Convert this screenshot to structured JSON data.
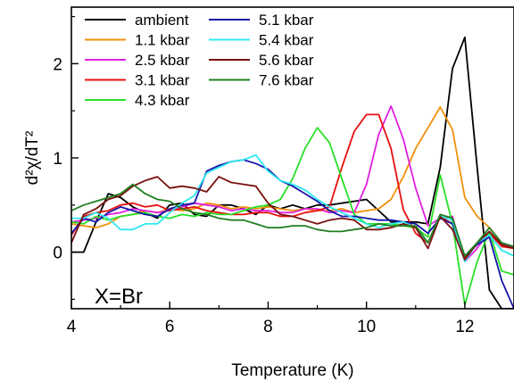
{
  "chart_data": {
    "type": "line",
    "xlabel": "Temperature (K)",
    "ylabel": "d²χ/dT²",
    "xlim": [
      4,
      13
    ],
    "ylim": [
      -0.6,
      2.6
    ],
    "x_ticks": [
      4,
      6,
      8,
      10,
      12
    ],
    "y_ticks": [
      0,
      1,
      2
    ],
    "grid": false,
    "legend_placement": "top-left",
    "annotation": "X=Br",
    "series": [
      {
        "name": "ambient",
        "color": "#000000",
        "x": [
          4,
          4.25,
          4.5,
          4.75,
          5,
          5.25,
          5.5,
          5.75,
          6,
          6.25,
          6.5,
          6.75,
          7,
          7.25,
          7.5,
          7.75,
          8,
          8.25,
          8.5,
          8.75,
          9,
          9.25,
          9.5,
          9.75,
          10,
          10.25,
          10.5,
          10.75,
          11,
          11.25,
          11.5,
          11.75,
          12,
          12.25,
          12.5,
          12.75,
          13
        ],
        "y": [
          0,
          0,
          0.32,
          0.62,
          0.58,
          0.48,
          0.42,
          0.36,
          0.5,
          0.52,
          0.4,
          0.38,
          0.5,
          0.5,
          0.46,
          0.4,
          0.5,
          0.46,
          0.5,
          0.46,
          0.5,
          0.5,
          0.52,
          0.54,
          0.56,
          0.44,
          0.32,
          0.32,
          0.32,
          0.3,
          0.9,
          1.95,
          2.28,
          0.9,
          -0.4,
          -0.6,
          -0.6
        ]
      },
      {
        "name": "1.1 kbar",
        "color": "#f0900a",
        "x": [
          4,
          4.25,
          4.5,
          4.75,
          5,
          5.25,
          5.5,
          5.75,
          6,
          6.25,
          6.5,
          6.75,
          7,
          7.25,
          7.5,
          7.75,
          8,
          8.25,
          8.5,
          8.75,
          9,
          9.25,
          9.5,
          9.75,
          10,
          10.25,
          10.5,
          10.75,
          11,
          11.25,
          11.5,
          11.75,
          12,
          12.25,
          12.5,
          12.75,
          13
        ],
        "y": [
          0.3,
          0.28,
          0.26,
          0.3,
          0.38,
          0.4,
          0.44,
          0.42,
          0.46,
          0.44,
          0.46,
          0.52,
          0.5,
          0.46,
          0.48,
          0.46,
          0.48,
          0.46,
          0.44,
          0.46,
          0.44,
          0.44,
          0.46,
          0.42,
          0.44,
          0.46,
          0.56,
          0.8,
          1.1,
          1.32,
          1.54,
          1.3,
          0.58,
          0.38,
          0.26,
          0.1,
          0.05
        ]
      },
      {
        "name": "2.5 kbar",
        "color": "#e020e0",
        "x": [
          4,
          4.25,
          4.5,
          4.75,
          5,
          5.25,
          5.5,
          5.75,
          6,
          6.25,
          6.5,
          6.75,
          7,
          7.25,
          7.5,
          7.75,
          8,
          8.25,
          8.5,
          8.75,
          9,
          9.25,
          9.5,
          9.75,
          10,
          10.25,
          10.5,
          10.75,
          11,
          11.25,
          11.5,
          11.75,
          12,
          12.25,
          12.5,
          12.75,
          13
        ],
        "y": [
          0.32,
          0.34,
          0.36,
          0.4,
          0.42,
          0.46,
          0.44,
          0.42,
          0.44,
          0.48,
          0.52,
          0.5,
          0.48,
          0.44,
          0.46,
          0.44,
          0.44,
          0.42,
          0.42,
          0.46,
          0.46,
          0.42,
          0.44,
          0.42,
          0.72,
          1.25,
          1.55,
          1.2,
          0.68,
          0.28,
          0.36,
          0.38,
          -0.1,
          0.04,
          0.22,
          0.08,
          0.06
        ]
      },
      {
        "name": "3.1 kbar",
        "color": "#e81010",
        "x": [
          4,
          4.25,
          4.5,
          4.75,
          5,
          5.25,
          5.5,
          5.75,
          6,
          6.25,
          6.5,
          6.75,
          7,
          7.25,
          7.5,
          7.75,
          8,
          8.25,
          8.5,
          8.75,
          9,
          9.25,
          9.5,
          9.75,
          10,
          10.25,
          10.5,
          10.75,
          11,
          11.25,
          11.5,
          11.75,
          12,
          12.25,
          12.5,
          12.75,
          13
        ],
        "y": [
          0.18,
          0.38,
          0.42,
          0.44,
          0.5,
          0.52,
          0.48,
          0.5,
          0.44,
          0.46,
          0.48,
          0.44,
          0.42,
          0.4,
          0.4,
          0.42,
          0.42,
          0.38,
          0.38,
          0.42,
          0.44,
          0.48,
          0.9,
          1.28,
          1.46,
          1.46,
          1.1,
          0.45,
          0.2,
          0.1,
          0.38,
          0.3,
          -0.06,
          0.08,
          0.2,
          0.06,
          0.04
        ]
      },
      {
        "name": "4.3 kbar",
        "color": "#28e028",
        "x": [
          4,
          4.25,
          4.5,
          4.75,
          5,
          5.25,
          5.5,
          5.75,
          6,
          6.25,
          6.5,
          6.75,
          7,
          7.25,
          7.5,
          7.75,
          8,
          8.25,
          8.5,
          8.75,
          9,
          9.25,
          9.5,
          9.75,
          10,
          10.25,
          10.5,
          10.75,
          11,
          11.25,
          11.5,
          11.75,
          12,
          12.25,
          12.5,
          12.75,
          13
        ],
        "y": [
          0.32,
          0.3,
          0.38,
          0.34,
          0.38,
          0.4,
          0.42,
          0.38,
          0.36,
          0.4,
          0.38,
          0.42,
          0.4,
          0.4,
          0.44,
          0.48,
          0.5,
          0.56,
          0.78,
          1.1,
          1.32,
          1.16,
          0.78,
          0.4,
          0.3,
          0.3,
          0.3,
          0.28,
          0.26,
          0.16,
          0.82,
          0.3,
          -0.56,
          -0.1,
          0.22,
          -0.2,
          -0.24
        ]
      },
      {
        "name": "5.1 kbar",
        "color": "#1515a8",
        "x": [
          4,
          4.25,
          4.5,
          4.75,
          5,
          5.25,
          5.5,
          5.75,
          6,
          6.25,
          6.5,
          6.75,
          7,
          7.25,
          7.5,
          7.75,
          8,
          8.25,
          8.5,
          8.75,
          9,
          9.25,
          9.5,
          9.75,
          10,
          10.25,
          10.5,
          10.75,
          11,
          11.25,
          11.5,
          11.75,
          12,
          12.25,
          12.5,
          12.75,
          13
        ],
        "y": [
          0.2,
          0.36,
          0.32,
          0.42,
          0.48,
          0.44,
          0.4,
          0.38,
          0.46,
          0.5,
          0.52,
          0.86,
          0.92,
          0.96,
          0.98,
          0.94,
          0.88,
          0.76,
          0.7,
          0.62,
          0.54,
          0.44,
          0.38,
          0.38,
          0.36,
          0.34,
          0.34,
          0.32,
          0.3,
          0.2,
          0.36,
          0.3,
          -0.04,
          0.08,
          0.16,
          -0.3,
          -0.6
        ]
      },
      {
        "name": "5.4 kbar",
        "color": "#30e8f0",
        "x": [
          4,
          4.25,
          4.5,
          4.75,
          5,
          5.25,
          5.5,
          5.75,
          6,
          6.25,
          6.5,
          6.75,
          7,
          7.25,
          7.5,
          7.75,
          8,
          8.25,
          8.5,
          8.75,
          9,
          9.25,
          9.5,
          9.75,
          10,
          10.25,
          10.5,
          10.75,
          11,
          11.25,
          11.5,
          11.75,
          12,
          12.25,
          12.5,
          12.75,
          13
        ],
        "y": [
          0.36,
          0.36,
          0.42,
          0.36,
          0.24,
          0.24,
          0.3,
          0.3,
          0.42,
          0.52,
          0.6,
          0.84,
          0.9,
          0.96,
          0.98,
          1.03,
          0.86,
          0.76,
          0.72,
          0.66,
          0.56,
          0.48,
          0.42,
          0.36,
          0.3,
          0.26,
          0.3,
          0.32,
          0.26,
          0.1,
          0.38,
          0.34,
          -0.1,
          0.1,
          0.18,
          0.02,
          -0.04
        ]
      },
      {
        "name": "5.6 kbar",
        "color": "#7a1010",
        "x": [
          4,
          4.25,
          4.5,
          4.75,
          5,
          5.25,
          5.5,
          5.75,
          6,
          6.25,
          6.5,
          6.75,
          7,
          7.25,
          7.5,
          7.75,
          8,
          8.25,
          8.5,
          8.75,
          9,
          9.25,
          9.5,
          9.75,
          10,
          10.25,
          10.5,
          10.75,
          11,
          11.25,
          11.5,
          11.75,
          12,
          12.25,
          12.5,
          12.75,
          13
        ],
        "y": [
          0.1,
          0.4,
          0.46,
          0.56,
          0.6,
          0.7,
          0.76,
          0.8,
          0.68,
          0.7,
          0.68,
          0.64,
          0.8,
          0.74,
          0.72,
          0.7,
          0.52,
          0.4,
          0.38,
          0.34,
          0.3,
          0.34,
          0.36,
          0.34,
          0.24,
          0.24,
          0.26,
          0.3,
          0.26,
          0.04,
          0.38,
          0.24,
          -0.08,
          0.1,
          0.22,
          0.08,
          0.04
        ]
      },
      {
        "name": "7.6 kbar",
        "color": "#208020",
        "x": [
          4,
          4.25,
          4.5,
          4.75,
          5,
          5.25,
          5.5,
          5.75,
          6,
          6.25,
          6.5,
          6.75,
          7,
          7.25,
          7.5,
          7.75,
          8,
          8.25,
          8.5,
          8.75,
          9,
          9.25,
          9.5,
          9.75,
          10,
          10.25,
          10.5,
          10.75,
          11,
          11.25,
          11.5,
          11.75,
          12,
          12.25,
          12.5,
          12.75,
          13
        ],
        "y": [
          0.44,
          0.5,
          0.54,
          0.58,
          0.62,
          0.72,
          0.62,
          0.56,
          0.54,
          0.46,
          0.42,
          0.4,
          0.36,
          0.34,
          0.34,
          0.3,
          0.26,
          0.26,
          0.28,
          0.28,
          0.24,
          0.22,
          0.22,
          0.24,
          0.26,
          0.3,
          0.28,
          0.28,
          0.28,
          0.1,
          0.4,
          0.36,
          -0.04,
          0.1,
          0.26,
          0.1,
          0.06
        ]
      }
    ]
  }
}
